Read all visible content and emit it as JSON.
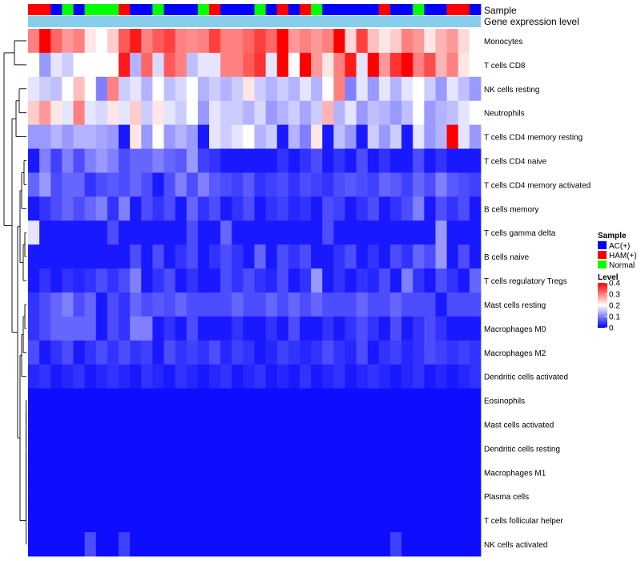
{
  "chart_data": {
    "type": "heatmap",
    "title": "",
    "annotation_tracks": [
      {
        "name": "Sample",
        "label": "Sample"
      },
      {
        "name": "Gene expression level",
        "label": "Gene expression level"
      }
    ],
    "sample_groups": [
      "HAM(+)",
      "HAM(+)",
      "AC(+)",
      "Normal",
      "AC(+)",
      "Normal",
      "Normal",
      "Normal",
      "HAM(+)",
      "AC(+)",
      "AC(+)",
      "Normal",
      "AC(+)",
      "AC(+)",
      "AC(+)",
      "Normal",
      "HAM(+)",
      "AC(+)",
      "AC(+)",
      "AC(+)",
      "Normal",
      "AC(+)",
      "HAM(+)",
      "AC(+)",
      "HAM(+)",
      "Normal",
      "AC(+)",
      "AC(+)",
      "AC(+)",
      "AC(+)",
      "AC(+)",
      "HAM(+)",
      "AC(+)",
      "AC(+)",
      "Normal",
      "AC(+)",
      "AC(+)",
      "HAM(+)",
      "HAM(+)",
      "AC(+)"
    ],
    "rows": [
      "Monocytes",
      "T cells CD8",
      "NK cells resting",
      "Neutrophils",
      "T cells CD4 memory resting",
      "T cells CD4 naive",
      "T cells CD4 memory activated",
      "B cells memory",
      "T cells gamma delta",
      "B cells naive",
      "T cells regulatory  Tregs",
      "Mast cells resting",
      "Macrophages M0",
      "Macrophages M2",
      "Dendritic cells activated",
      "Eosinophils",
      "Mast cells activated",
      "Dendritic cells resting",
      "Macrophages M1",
      "Plasma cells",
      "T cells follicular helper",
      "NK cells activated"
    ],
    "values": [
      [
        0.3,
        0.4,
        0.32,
        0.28,
        0.3,
        0.22,
        0.2,
        0.24,
        0.33,
        0.38,
        0.3,
        0.33,
        0.35,
        0.3,
        0.29,
        0.3,
        0.35,
        0.3,
        0.3,
        0.32,
        0.35,
        0.32,
        0.4,
        0.28,
        0.3,
        0.28,
        0.3,
        0.4,
        0.23,
        0.35,
        0.25,
        0.22,
        0.24,
        0.3,
        0.28,
        0.22,
        0.26,
        0.28,
        0.23,
        0.2
      ],
      [
        0.2,
        0.12,
        0.18,
        0.16,
        0.2,
        0.2,
        0.2,
        0.2,
        0.38,
        0.14,
        0.32,
        0.17,
        0.33,
        0.3,
        0.15,
        0.18,
        0.18,
        0.3,
        0.3,
        0.33,
        0.36,
        0.18,
        0.4,
        0.2,
        0.4,
        0.28,
        0.22,
        0.3,
        0.38,
        0.18,
        0.4,
        0.28,
        0.36,
        0.4,
        0.3,
        0.34,
        0.26,
        0.3,
        0.22,
        0.2
      ],
      [
        0.18,
        0.16,
        0.15,
        0.2,
        0.25,
        0.2,
        0.1,
        0.3,
        0.16,
        0.18,
        0.14,
        0.2,
        0.15,
        0.17,
        0.2,
        0.14,
        0.16,
        0.14,
        0.16,
        0.22,
        0.16,
        0.14,
        0.16,
        0.14,
        0.18,
        0.14,
        0.2,
        0.3,
        0.1,
        0.18,
        0.12,
        0.18,
        0.14,
        0.18,
        0.2,
        0.16,
        0.12,
        0.18,
        0.15,
        0.12
      ],
      [
        0.24,
        0.28,
        0.22,
        0.18,
        0.3,
        0.18,
        0.17,
        0.22,
        0.18,
        0.24,
        0.16,
        0.22,
        0.18,
        0.16,
        0.2,
        0.12,
        0.18,
        0.16,
        0.16,
        0.14,
        0.17,
        0.12,
        0.14,
        0.16,
        0.13,
        0.16,
        0.26,
        0.14,
        0.18,
        0.12,
        0.15,
        0.14,
        0.12,
        0.15,
        0.2,
        0.12,
        0.14,
        0.15,
        0.18,
        0.2
      ],
      [
        0.12,
        0.12,
        0.14,
        0.12,
        0.14,
        0.14,
        0.13,
        0.12,
        0.02,
        0.22,
        0.12,
        0.2,
        0.12,
        0.14,
        0.12,
        0.02,
        0.18,
        0.16,
        0.18,
        0.2,
        0.14,
        0.16,
        0.02,
        0.14,
        0.1,
        0.22,
        0.02,
        0.15,
        0.12,
        0.02,
        0.16,
        0.12,
        0.16,
        0.02,
        0.18,
        0.12,
        0.14,
        0.4,
        0.18,
        0.12
      ],
      [
        0.02,
        0.1,
        0.05,
        0.1,
        0.06,
        0.1,
        0.12,
        0.1,
        0.06,
        0.08,
        0.08,
        0.1,
        0.08,
        0.07,
        0.12,
        0.05,
        0.04,
        0.02,
        0.02,
        0.02,
        0.02,
        0.02,
        0.04,
        0.02,
        0.04,
        0.06,
        0.02,
        0.04,
        0.02,
        0.06,
        0.02,
        0.04,
        0.02,
        0.02,
        0.06,
        0.02,
        0.04,
        0.02,
        0.02,
        0.02
      ],
      [
        0.08,
        0.12,
        0.06,
        0.08,
        0.08,
        0.04,
        0.06,
        0.07,
        0.06,
        0.08,
        0.06,
        0.02,
        0.06,
        0.1,
        0.06,
        0.1,
        0.07,
        0.06,
        0.05,
        0.07,
        0.04,
        0.05,
        0.06,
        0.04,
        0.06,
        0.05,
        0.04,
        0.06,
        0.07,
        0.06,
        0.05,
        0.08,
        0.07,
        0.05,
        0.08,
        0.06,
        0.1,
        0.07,
        0.06,
        0.05
      ],
      [
        0.02,
        0.04,
        0.06,
        0.08,
        0.06,
        0.08,
        0.1,
        0.04,
        0.1,
        0.02,
        0.06,
        0.04,
        0.06,
        0.02,
        0.08,
        0.04,
        0.06,
        0.02,
        0.04,
        0.06,
        0.02,
        0.04,
        0.05,
        0.03,
        0.04,
        0.02,
        0.06,
        0.05,
        0.02,
        0.04,
        0.06,
        0.02,
        0.04,
        0.06,
        0.1,
        0.02,
        0.06,
        0.04,
        0.06,
        0.02
      ],
      [
        0.18,
        0.02,
        0.02,
        0.02,
        0.02,
        0.02,
        0.02,
        0.06,
        0.02,
        0.02,
        0.02,
        0.02,
        0.02,
        0.02,
        0.06,
        0.02,
        0.02,
        0.08,
        0.02,
        0.02,
        0.02,
        0.02,
        0.02,
        0.02,
        0.02,
        0.02,
        0.06,
        0.02,
        0.02,
        0.02,
        0.02,
        0.02,
        0.02,
        0.02,
        0.02,
        0.02,
        0.12,
        0.02,
        0.02,
        0.02
      ],
      [
        0.02,
        0.02,
        0.02,
        0.02,
        0.02,
        0.02,
        0.02,
        0.02,
        0.02,
        0.06,
        0.02,
        0.06,
        0.02,
        0.04,
        0.06,
        0.02,
        0.04,
        0.06,
        0.04,
        0.02,
        0.08,
        0.02,
        0.06,
        0.04,
        0.06,
        0.02,
        0.02,
        0.04,
        0.06,
        0.02,
        0.04,
        0.02,
        0.06,
        0.04,
        0.08,
        0.06,
        0.12,
        0.02,
        0.06,
        0.02
      ],
      [
        0.02,
        0.04,
        0.02,
        0.04,
        0.03,
        0.04,
        0.06,
        0.04,
        0.06,
        0.1,
        0.02,
        0.04,
        0.06,
        0.02,
        0.04,
        0.02,
        0.02,
        0.06,
        0.04,
        0.06,
        0.04,
        0.03,
        0.06,
        0.02,
        0.04,
        0.12,
        0.02,
        0.04,
        0.02,
        0.04,
        0.03,
        0.06,
        0.02,
        0.1,
        0.04,
        0.02,
        0.06,
        0.04,
        0.02,
        0.08
      ],
      [
        0.04,
        0.06,
        0.08,
        0.1,
        0.06,
        0.08,
        0.02,
        0.06,
        0.04,
        0.08,
        0.06,
        0.07,
        0.06,
        0.08,
        0.06,
        0.06,
        0.06,
        0.06,
        0.08,
        0.06,
        0.06,
        0.08,
        0.06,
        0.08,
        0.06,
        0.08,
        0.06,
        0.06,
        0.06,
        0.08,
        0.06,
        0.06,
        0.08,
        0.06,
        0.06,
        0.06,
        0.02,
        0.06,
        0.06,
        0.06
      ],
      [
        0.04,
        0.06,
        0.08,
        0.08,
        0.08,
        0.08,
        0.02,
        0.06,
        0.04,
        0.1,
        0.1,
        0.02,
        0.04,
        0.02,
        0.06,
        0.02,
        0.02,
        0.02,
        0.04,
        0.02,
        0.02,
        0.04,
        0.02,
        0.06,
        0.02,
        0.02,
        0.04,
        0.02,
        0.04,
        0.06,
        0.04,
        0.02,
        0.06,
        0.02,
        0.04,
        0.06,
        0.04,
        0.02,
        0.02,
        0.02
      ],
      [
        0.06,
        0.02,
        0.04,
        0.06,
        0.02,
        0.04,
        0.06,
        0.04,
        0.06,
        0.04,
        0.05,
        0.02,
        0.06,
        0.04,
        0.05,
        0.04,
        0.06,
        0.03,
        0.05,
        0.04,
        0.02,
        0.03,
        0.05,
        0.04,
        0.03,
        0.04,
        0.06,
        0.04,
        0.03,
        0.06,
        0.02,
        0.04,
        0.05,
        0.03,
        0.04,
        0.06,
        0.05,
        0.04,
        0.05,
        0.04
      ],
      [
        0.03,
        0.04,
        0.02,
        0.03,
        0.04,
        0.02,
        0.03,
        0.04,
        0.03,
        0.02,
        0.04,
        0.03,
        0.02,
        0.04,
        0.03,
        0.02,
        0.03,
        0.04,
        0.02,
        0.03,
        0.04,
        0.02,
        0.03,
        0.02,
        0.04,
        0.02,
        0.03,
        0.04,
        0.02,
        0.03,
        0.04,
        0.03,
        0.02,
        0.03,
        0.04,
        0.02,
        0.03,
        0.02,
        0.03,
        0.04
      ],
      [
        0.01,
        0.01,
        0.01,
        0.01,
        0.01,
        0.01,
        0.01,
        0.01,
        0.01,
        0.01,
        0.01,
        0.01,
        0.01,
        0.01,
        0.01,
        0.01,
        0.01,
        0.01,
        0.01,
        0.01,
        0.01,
        0.01,
        0.01,
        0.01,
        0.01,
        0.01,
        0.01,
        0.01,
        0.01,
        0.01,
        0.01,
        0.01,
        0.01,
        0.01,
        0.01,
        0.01,
        0.01,
        0.01,
        0.01,
        0.01
      ],
      [
        0.01,
        0.01,
        0.01,
        0.01,
        0.01,
        0.01,
        0.01,
        0.01,
        0.01,
        0.01,
        0.01,
        0.01,
        0.01,
        0.01,
        0.01,
        0.01,
        0.01,
        0.01,
        0.01,
        0.01,
        0.01,
        0.01,
        0.01,
        0.01,
        0.01,
        0.01,
        0.01,
        0.01,
        0.01,
        0.01,
        0.01,
        0.01,
        0.01,
        0.01,
        0.01,
        0.01,
        0.01,
        0.01,
        0.01,
        0.01
      ],
      [
        0.01,
        0.01,
        0.01,
        0.01,
        0.01,
        0.01,
        0.01,
        0.01,
        0.01,
        0.01,
        0.01,
        0.01,
        0.01,
        0.01,
        0.01,
        0.01,
        0.01,
        0.01,
        0.01,
        0.01,
        0.01,
        0.01,
        0.01,
        0.01,
        0.01,
        0.01,
        0.01,
        0.01,
        0.01,
        0.01,
        0.01,
        0.01,
        0.01,
        0.01,
        0.01,
        0.01,
        0.01,
        0.01,
        0.01,
        0.01
      ],
      [
        0.01,
        0.01,
        0.01,
        0.01,
        0.01,
        0.01,
        0.01,
        0.01,
        0.01,
        0.01,
        0.01,
        0.01,
        0.01,
        0.01,
        0.01,
        0.01,
        0.01,
        0.01,
        0.01,
        0.01,
        0.01,
        0.01,
        0.01,
        0.01,
        0.01,
        0.01,
        0.01,
        0.01,
        0.01,
        0.01,
        0.01,
        0.01,
        0.01,
        0.01,
        0.01,
        0.01,
        0.01,
        0.01,
        0.01,
        0.01
      ],
      [
        0.01,
        0.01,
        0.01,
        0.01,
        0.01,
        0.01,
        0.01,
        0.01,
        0.01,
        0.01,
        0.01,
        0.01,
        0.01,
        0.01,
        0.01,
        0.01,
        0.01,
        0.01,
        0.01,
        0.01,
        0.01,
        0.01,
        0.01,
        0.01,
        0.01,
        0.01,
        0.01,
        0.01,
        0.01,
        0.01,
        0.01,
        0.01,
        0.01,
        0.01,
        0.01,
        0.01,
        0.01,
        0.01,
        0.01,
        0.01
      ],
      [
        0.01,
        0.01,
        0.01,
        0.01,
        0.01,
        0.01,
        0.01,
        0.01,
        0.01,
        0.01,
        0.01,
        0.01,
        0.01,
        0.01,
        0.01,
        0.01,
        0.01,
        0.01,
        0.01,
        0.01,
        0.01,
        0.01,
        0.01,
        0.01,
        0.01,
        0.01,
        0.01,
        0.01,
        0.01,
        0.01,
        0.01,
        0.01,
        0.01,
        0.01,
        0.01,
        0.01,
        0.01,
        0.01,
        0.01,
        0.01
      ],
      [
        0.01,
        0.01,
        0.01,
        0.01,
        0.01,
        0.06,
        0.01,
        0.01,
        0.05,
        0.01,
        0.01,
        0.01,
        0.01,
        0.01,
        0.01,
        0.01,
        0.01,
        0.01,
        0.01,
        0.01,
        0.01,
        0.01,
        0.01,
        0.01,
        0.01,
        0.01,
        0.01,
        0.01,
        0.01,
        0.01,
        0.01,
        0.01,
        0.05,
        0.01,
        0.01,
        0.01,
        0.01,
        0.01,
        0.01,
        0.01
      ]
    ],
    "legend": {
      "sample_title": "Sample",
      "sample_entries": [
        {
          "label": "AC(+)",
          "color": "#0000FF"
        },
        {
          "label": "HAM(+)",
          "color": "#FF0000"
        },
        {
          "label": "Normal",
          "color": "#00FF00"
        }
      ],
      "level_title": "Level",
      "level_ticks": [
        0.4,
        0.3,
        0.2,
        0.1,
        0
      ]
    },
    "color_scale": {
      "min": 0,
      "mid": 0.2,
      "max": 0.4,
      "low": "#0000FF",
      "midColor": "#FFFFFF",
      "high": "#FF0000"
    },
    "expression_bar_color": "#87CEEB",
    "dendrogram_color": "#000000"
  }
}
